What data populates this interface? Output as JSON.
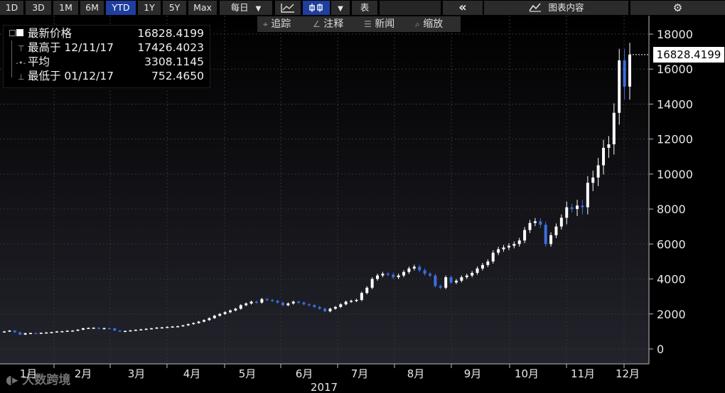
{
  "toolbar": {
    "ranges": [
      "1D",
      "3D",
      "1M",
      "6M",
      "YTD",
      "1Y",
      "5Y",
      "Max"
    ],
    "active_range": "YTD",
    "frequency": "每日",
    "frequency_arrow": "▼",
    "chart_type_arrow": "▼",
    "table_label": "表",
    "collapse_icon": "«",
    "chart_content_label": "图表内容",
    "settings_icon": "gear-icon"
  },
  "subbar": {
    "items": [
      {
        "icon": "⌖",
        "label": "追踪"
      },
      {
        "icon": "∠",
        "label": "注释"
      },
      {
        "icon": "☰",
        "label": "新闻"
      },
      {
        "icon": "⌕",
        "label": "缩放"
      }
    ]
  },
  "legend": {
    "rows": [
      {
        "label": "最新价格",
        "value": "16828.4199"
      },
      {
        "label": "最高于 12/11/17",
        "value": "17426.4023"
      },
      {
        "label": "平均",
        "value": "3308.1145"
      },
      {
        "label": "最低于 01/12/17",
        "value": "752.4650"
      }
    ]
  },
  "price_badge": "16828.4199",
  "watermark": "大数跨境",
  "colors": {
    "background": "#000000",
    "up_candle": "#ffffff",
    "down_candle": "#3a6fe0",
    "grid": "#333333",
    "active_button": "#1f3f9e"
  },
  "chart_data": {
    "type": "candlestick",
    "year_label": "2017",
    "x_tick_labels": [
      "1月",
      "2月",
      "3月",
      "4月",
      "5月",
      "6月",
      "7月",
      "8月",
      "9月",
      "10月",
      "11月",
      "12月"
    ],
    "y_tick_labels": [
      "0",
      "2000",
      "4000",
      "6000",
      "8000",
      "10000",
      "12000",
      "14000",
      "16000",
      "18000"
    ],
    "ylim": [
      -300,
      18800
    ],
    "grid": true,
    "legend_position": "top-left",
    "last": 16828.4199,
    "high": 17426.4023,
    "average": 3308.1145,
    "low": 752.465,
    "series": [
      {
        "name": "close",
        "values": [
          1000,
          1050,
          950,
          820,
          900,
          910,
          890,
          920,
          940,
          960,
          1000,
          1010,
          1040,
          1050,
          1100,
          1180,
          1200,
          1210,
          1150,
          1190,
          1180,
          1050,
          1000,
          1030,
          1060,
          1090,
          1120,
          1150,
          1180,
          1220,
          1230,
          1260,
          1280,
          1300,
          1350,
          1420,
          1480,
          1560,
          1650,
          1760,
          1900,
          2000,
          2100,
          2200,
          2300,
          2500,
          2600,
          2700,
          2650,
          2850,
          2800,
          2750,
          2650,
          2500,
          2600,
          2700,
          2650,
          2550,
          2500,
          2400,
          2300,
          2150,
          2300,
          2400,
          2550,
          2700,
          2750,
          2800,
          3200,
          3500,
          4000,
          4200,
          4300,
          4250,
          4100,
          4200,
          4400,
          4600,
          4700,
          4500,
          4300,
          4200,
          3600,
          3500,
          4100,
          3800,
          3900,
          4100,
          4200,
          4350,
          4600,
          4800,
          5000,
          5500,
          5700,
          5800,
          5900,
          6000,
          6200,
          6800,
          7200,
          7300,
          7100,
          6000,
          6500,
          7000,
          7500,
          8100,
          8000,
          8200,
          8100,
          9500,
          9800,
          10500,
          11500,
          11700,
          13500,
          16500,
          15000,
          16828
        ]
      }
    ]
  }
}
